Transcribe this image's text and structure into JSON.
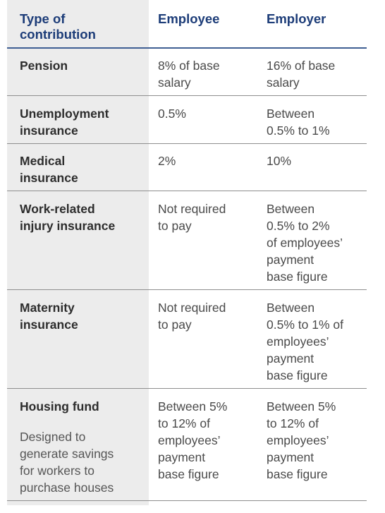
{
  "table": {
    "headers": {
      "type": "Type of\ncontribution",
      "employee": "Employee",
      "employer": "Employer"
    },
    "rows": [
      {
        "type": "Pension",
        "employee": "8% of base\nsalary",
        "employer": "16% of base\nsalary"
      },
      {
        "type": "Unemployment\ninsurance",
        "employee": "0.5%",
        "employer": "Between\n0.5% to 1%"
      },
      {
        "type": "Medical\ninsurance",
        "employee": "2%",
        "employer": "10%"
      },
      {
        "type": "Work-related\ninjury insurance",
        "employee": "Not required\nto pay",
        "employer": "Between\n0.5% to 2%\nof employees’\npayment\nbase figure"
      },
      {
        "type": "Maternity\ninsurance",
        "employee": "Not required\nto pay",
        "employer": "Between\n0.5% to 1% of\nemployees’\npayment\nbase figure"
      },
      {
        "type": "Housing fund",
        "note": "Designed to\ngenerate savings\nfor workers to\npurchase houses",
        "employee": "Between 5%\nto 12% of\nemployees’\npayment\nbase figure",
        "employer": "Between 5%\nto 12% of\nemployees’\npayment\nbase figure"
      }
    ]
  }
}
